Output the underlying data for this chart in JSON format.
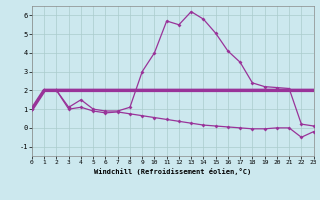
{
  "xlabel": "Windchill (Refroidissement éolien,°C)",
  "xlim": [
    0,
    23
  ],
  "ylim": [
    -1.5,
    6.5
  ],
  "yticks": [
    -1,
    0,
    1,
    2,
    3,
    4,
    5,
    6
  ],
  "xticks": [
    0,
    1,
    2,
    3,
    4,
    5,
    6,
    7,
    8,
    9,
    10,
    11,
    12,
    13,
    14,
    15,
    16,
    17,
    18,
    19,
    20,
    21,
    22,
    23
  ],
  "bg_color": "#cce8ee",
  "line_color": "#993399",
  "series1_x": [
    0,
    1,
    2,
    3,
    4,
    5,
    6,
    7,
    8,
    9,
    10,
    11,
    12,
    13,
    14,
    15,
    16,
    17,
    18,
    19,
    20,
    21,
    22,
    23
  ],
  "series1_y": [
    1.0,
    2.0,
    2.0,
    1.1,
    1.5,
    1.0,
    0.9,
    0.9,
    1.1,
    3.0,
    4.0,
    5.7,
    5.5,
    6.2,
    5.8,
    5.05,
    4.1,
    3.5,
    2.4,
    2.2,
    2.15,
    2.1,
    0.2,
    0.1
  ],
  "series2_x": [
    0,
    1,
    2,
    3,
    4,
    5,
    6,
    7,
    8,
    9,
    10,
    11,
    12,
    13,
    14,
    15,
    16,
    17,
    18,
    19,
    20,
    21,
    22,
    23
  ],
  "series2_y": [
    1.0,
    2.0,
    2.0,
    2.0,
    2.0,
    2.0,
    2.0,
    2.0,
    2.0,
    2.0,
    2.0,
    2.0,
    2.0,
    2.0,
    2.0,
    2.0,
    2.0,
    2.0,
    2.0,
    2.0,
    2.0,
    2.0,
    2.0,
    2.0
  ],
  "series3_x": [
    0,
    1,
    2,
    3,
    4,
    5,
    6,
    7,
    8,
    9,
    10,
    11,
    12,
    13,
    14,
    15,
    16,
    17,
    18,
    19,
    20,
    21,
    22,
    23
  ],
  "series3_y": [
    1.0,
    2.0,
    2.0,
    1.0,
    1.1,
    0.9,
    0.8,
    0.85,
    0.75,
    0.65,
    0.55,
    0.45,
    0.35,
    0.25,
    0.15,
    0.1,
    0.05,
    0.0,
    -0.05,
    -0.05,
    0.0,
    0.0,
    -0.5,
    -0.2
  ]
}
